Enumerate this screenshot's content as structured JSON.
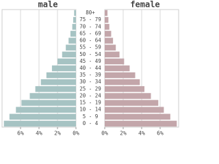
{
  "chart_data": {
    "type": "pyramid",
    "categories": [
      "0 - 4",
      "5 - 9",
      "10 - 14",
      "15 - 19",
      "20 - 24",
      "25 - 29",
      "30 - 34",
      "35 - 39",
      "40 - 44",
      "45 - 49",
      "50 - 54",
      "55 - 59",
      "60 - 64",
      "65 - 69",
      "70 - 74",
      "75 - 79",
      "80+"
    ],
    "series": [
      {
        "name": "male",
        "color": "#a6c3c3",
        "values": [
          7.8,
          7.2,
          6.5,
          5.9,
          5.0,
          4.4,
          3.8,
          3.2,
          2.6,
          2.0,
          1.5,
          1.1,
          0.8,
          0.6,
          0.4,
          0.3,
          0.2
        ]
      },
      {
        "name": "female",
        "color": "#c3a6aa",
        "values": [
          7.8,
          7.1,
          6.4,
          5.8,
          5.0,
          4.3,
          3.8,
          3.3,
          2.7,
          2.1,
          1.6,
          1.2,
          0.9,
          0.7,
          0.5,
          0.4,
          0.3
        ]
      }
    ],
    "xlim": [
      0,
      8
    ],
    "xticks": [
      {
        "value": 0,
        "label": "0%"
      },
      {
        "value": 2,
        "label": "2%"
      },
      {
        "value": 4,
        "label": "4%"
      },
      {
        "value": 6,
        "label": "6%"
      }
    ],
    "grid": true
  }
}
